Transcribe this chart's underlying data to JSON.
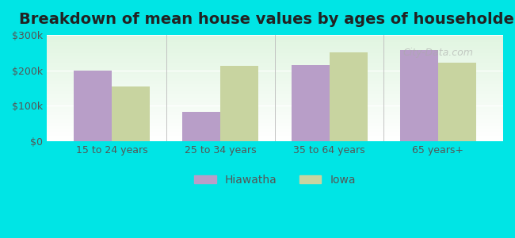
{
  "title": "Breakdown of mean house values by ages of householders",
  "categories": [
    "15 to 24 years",
    "25 to 34 years",
    "35 to 64 years",
    "65 years+"
  ],
  "hiawatha_values": [
    200000,
    82000,
    215000,
    258000
  ],
  "iowa_values": [
    155000,
    212000,
    250000,
    222000
  ],
  "ylim": [
    0,
    300000
  ],
  "yticks": [
    0,
    100000,
    200000,
    300000
  ],
  "ytick_labels": [
    "$0",
    "$100k",
    "$200k",
    "$300k"
  ],
  "hiawatha_color": "#b89ec8",
  "iowa_color": "#c8d4a0",
  "background_color": "#00e5e5",
  "plot_bg_top": "#e8f5e0",
  "plot_bg_bottom": "#ffffff",
  "bar_width": 0.35,
  "legend_hiawatha": "Hiawatha",
  "legend_iowa": "Iowa",
  "title_fontsize": 14,
  "tick_fontsize": 9,
  "legend_fontsize": 10
}
